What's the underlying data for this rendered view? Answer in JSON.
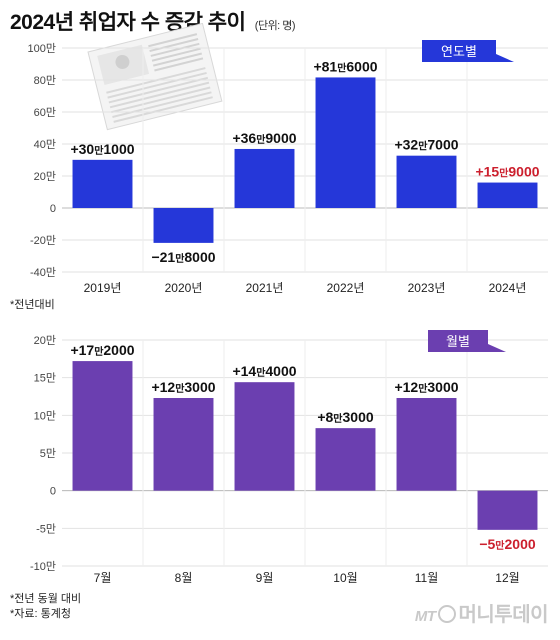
{
  "title": "2024년 취업자 수 증감 추이",
  "unit": "(단위: 명)",
  "chart_data": [
    {
      "type": "bar",
      "badge": "연도별",
      "categories": [
        "2019년",
        "2020년",
        "2021년",
        "2022년",
        "2023년",
        "2024년"
      ],
      "values": [
        301000,
        -218000,
        369000,
        816000,
        327000,
        159000
      ],
      "labels": [
        {
          "sign": "+",
          "big": "30",
          "man": "만",
          "rest": "1000"
        },
        {
          "sign": "−",
          "big": "21",
          "man": "만",
          "rest": "8000"
        },
        {
          "sign": "+",
          "big": "36",
          "man": "만",
          "rest": "9000"
        },
        {
          "sign": "+",
          "big": "81",
          "man": "만",
          "rest": "6000"
        },
        {
          "sign": "+",
          "big": "32",
          "man": "만",
          "rest": "7000"
        },
        {
          "sign": "+",
          "big": "15",
          "man": "만",
          "rest": "9000"
        }
      ],
      "highlight_index": 5,
      "yticks": [
        "100만",
        "80만",
        "60만",
        "40만",
        "20만",
        "0",
        "-20만",
        "-40만"
      ],
      "tick_values": [
        1000000,
        800000,
        600000,
        400000,
        200000,
        0,
        -200000,
        -400000
      ],
      "ylim": [
        -400000,
        1000000
      ],
      "note": "*전년대비",
      "bar_color": "#2537d9",
      "badge_color": "#2537d9"
    },
    {
      "type": "bar",
      "badge": "월별",
      "categories": [
        "7월",
        "8월",
        "9월",
        "10월",
        "11월",
        "12월"
      ],
      "values": [
        172000,
        123000,
        144000,
        83000,
        123000,
        -52000
      ],
      "labels": [
        {
          "sign": "+",
          "big": "17",
          "man": "만",
          "rest": "2000"
        },
        {
          "sign": "+",
          "big": "12",
          "man": "만",
          "rest": "3000"
        },
        {
          "sign": "+",
          "big": "14",
          "man": "만",
          "rest": "4000"
        },
        {
          "sign": "+",
          "big": "8",
          "man": "만",
          "rest": "3000"
        },
        {
          "sign": "+",
          "big": "12",
          "man": "만",
          "rest": "3000"
        },
        {
          "sign": "−",
          "big": "5",
          "man": "만",
          "rest": "2000"
        }
      ],
      "highlight_index": 5,
      "yticks": [
        "20만",
        "15만",
        "10만",
        "5만",
        "0",
        "-5만",
        "-10만"
      ],
      "tick_values": [
        200000,
        150000,
        100000,
        50000,
        0,
        -50000,
        -100000
      ],
      "ylim": [
        -100000,
        200000
      ],
      "bar_color": "#6b3fb0",
      "badge_color": "#6b3fb0"
    }
  ],
  "footer": {
    "line1": "*전년 동월 대비",
    "line2": "*자료: 통계청"
  },
  "logo": {
    "mt": "MT",
    "name": "머니투데이"
  },
  "colors": {
    "highlight": "#cc1f2d",
    "grid": "#e2e2e2",
    "text": "#222222"
  }
}
